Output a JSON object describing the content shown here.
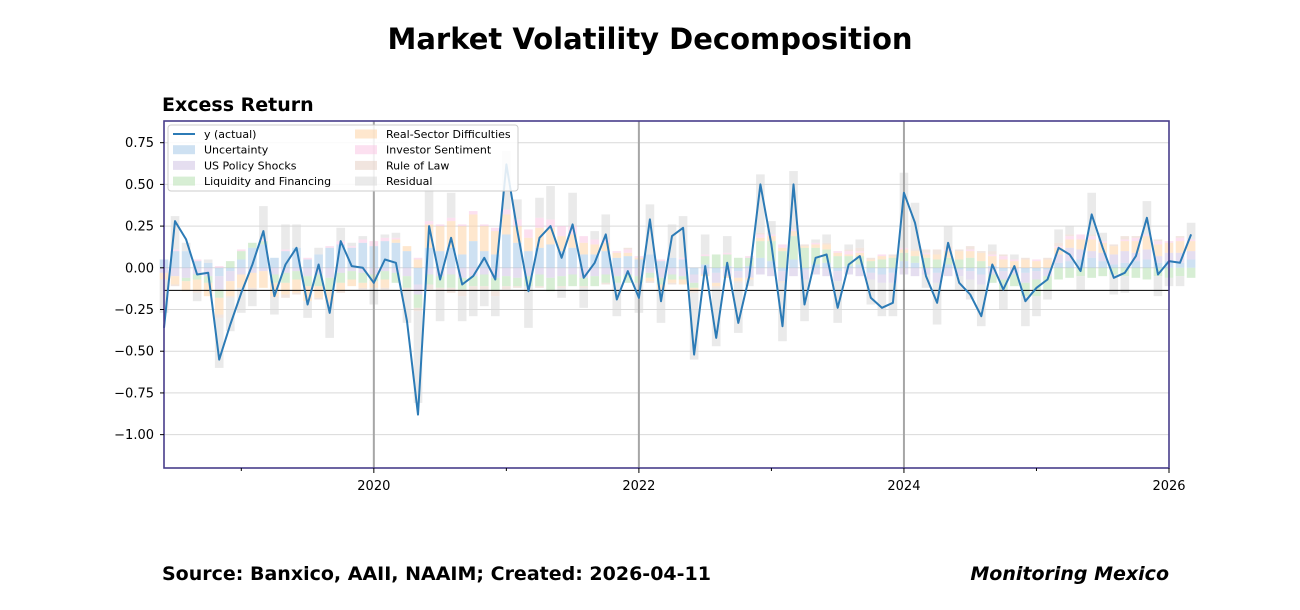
{
  "chart_data": {
    "type": "bar",
    "title": "Market Volatility Decomposition",
    "subtitle": "Excess Return",
    "ylim": [
      -1.2,
      0.88
    ],
    "xlim": [
      "2018-06",
      "2026-01"
    ],
    "y_ticks": [
      "0.75",
      "0.50",
      "0.25",
      "0.00",
      "−0.25",
      "−0.50",
      "−0.75",
      "−1.00"
    ],
    "y_tick_values": [
      0.75,
      0.5,
      0.25,
      0.0,
      -0.25,
      -0.5,
      -0.75,
      -1.0
    ],
    "x_ticks": [
      "2020",
      "2022",
      "2024",
      "2026"
    ],
    "x_tick_dates": [
      "2020-01",
      "2022-01",
      "2024-01",
      "2026-01"
    ],
    "vertical_lines": [
      "2020-01",
      "2022-01",
      "2024-01"
    ],
    "baseline": -0.135,
    "legend_position": "top-left",
    "line_series": {
      "name": "y (actual)",
      "color": "#2c7bb6",
      "values": [
        -0.36,
        0.28,
        0.17,
        -0.04,
        -0.03,
        -0.55,
        -0.34,
        -0.15,
        0.02,
        0.22,
        -0.17,
        0.02,
        0.12,
        -0.22,
        0.02,
        -0.27,
        0.16,
        0.01,
        0.0,
        -0.09,
        0.05,
        0.03,
        -0.32,
        -0.88,
        0.25,
        -0.07,
        0.18,
        -0.1,
        -0.05,
        0.06,
        -0.07,
        0.62,
        0.22,
        -0.14,
        0.18,
        0.25,
        0.06,
        0.26,
        -0.06,
        0.03,
        0.2,
        -0.19,
        -0.02,
        -0.18,
        0.29,
        -0.2,
        0.19,
        0.24,
        -0.52,
        0.01,
        -0.42,
        0.03,
        -0.33,
        -0.05,
        0.5,
        0.14,
        -0.35,
        0.5,
        -0.22,
        0.06,
        0.08,
        -0.24,
        0.02,
        0.07,
        -0.18,
        -0.24,
        -0.21,
        0.45,
        0.27,
        -0.05,
        -0.21,
        0.15,
        -0.09,
        -0.16,
        -0.29,
        0.02,
        -0.13,
        0.01,
        -0.2,
        -0.12,
        -0.07,
        0.12,
        0.08,
        -0.02,
        0.32,
        0.12,
        -0.06,
        -0.03,
        0.07,
        0.3,
        -0.04,
        0.04,
        0.03,
        0.2
      ]
    },
    "series": [
      {
        "name": "Uncertainty",
        "color": "#a6c8e8",
        "values": [
          0.05,
          0.1,
          0.1,
          0.04,
          0.03,
          -0.05,
          -0.02,
          0.05,
          0.12,
          0.14,
          0.06,
          0.1,
          0.12,
          0.05,
          0.08,
          0.12,
          0.14,
          0.12,
          0.15,
          0.13,
          0.16,
          0.15,
          0.1,
          -0.1,
          0.12,
          0.1,
          0.12,
          0.08,
          0.16,
          0.1,
          0.08,
          0.2,
          0.15,
          0.1,
          0.12,
          0.14,
          0.1,
          0.12,
          0.08,
          0.08,
          0.1,
          0.06,
          0.07,
          0.05,
          0.08,
          0.04,
          0.06,
          0.05,
          -0.04,
          0.02,
          -0.03,
          0.01,
          -0.02,
          0.01,
          0.06,
          0.04,
          -0.02,
          0.05,
          -0.01,
          0.02,
          0.03,
          -0.02,
          0.01,
          0.02,
          -0.03,
          -0.04,
          -0.03,
          0.04,
          0.03,
          0.0,
          -0.03,
          0.02,
          -0.01,
          -0.02,
          -0.04,
          0.01,
          -0.02,
          0.0,
          -0.03,
          -0.02,
          -0.01,
          0.03,
          0.04,
          0.05,
          0.06,
          0.04,
          0.02,
          0.03,
          0.04,
          0.05,
          0.03,
          0.04,
          0.03,
          0.05
        ]
      },
      {
        "name": "US Policy Shocks",
        "color": "#cfc3e3",
        "values": [
          -0.03,
          -0.05,
          -0.06,
          -0.04,
          -0.05,
          -0.08,
          -0.06,
          -0.04,
          -0.03,
          -0.02,
          -0.04,
          -0.03,
          -0.02,
          -0.05,
          -0.04,
          -0.06,
          -0.03,
          -0.02,
          -0.03,
          -0.04,
          -0.02,
          -0.03,
          -0.05,
          -0.06,
          -0.04,
          -0.05,
          -0.04,
          -0.06,
          -0.05,
          -0.04,
          -0.06,
          -0.05,
          -0.06,
          -0.05,
          -0.04,
          -0.06,
          -0.05,
          -0.04,
          -0.06,
          -0.05,
          -0.04,
          -0.05,
          -0.04,
          -0.05,
          -0.03,
          -0.06,
          -0.04,
          -0.05,
          -0.05,
          -0.04,
          -0.06,
          -0.05,
          -0.04,
          -0.06,
          -0.04,
          -0.05,
          -0.06,
          -0.05,
          -0.06,
          -0.04,
          -0.05,
          -0.06,
          -0.04,
          -0.05,
          -0.04,
          -0.05,
          -0.06,
          -0.04,
          -0.05,
          -0.04,
          -0.06,
          -0.05,
          -0.04,
          -0.05,
          -0.06,
          -0.04,
          -0.05,
          -0.04,
          -0.06,
          -0.05,
          -0.04,
          0.05,
          0.08,
          0.06,
          0.04,
          0.05,
          0.06,
          0.07,
          0.05,
          0.06,
          0.04,
          0.05,
          0.06,
          0.05
        ]
      },
      {
        "name": "Liquidity and Financing",
        "color": "#b6e0b1",
        "values": [
          0.0,
          0.0,
          -0.02,
          -0.03,
          -0.04,
          -0.05,
          0.04,
          0.05,
          0.03,
          0.02,
          -0.05,
          -0.06,
          -0.05,
          -0.06,
          -0.07,
          -0.08,
          -0.06,
          -0.05,
          -0.06,
          -0.04,
          -0.05,
          -0.06,
          -0.07,
          -0.08,
          -0.06,
          -0.07,
          -0.08,
          -0.07,
          -0.06,
          -0.07,
          -0.08,
          -0.06,
          -0.05,
          -0.06,
          -0.07,
          -0.08,
          -0.06,
          -0.07,
          -0.05,
          -0.06,
          -0.05,
          -0.04,
          -0.05,
          -0.04,
          -0.03,
          -0.04,
          -0.03,
          -0.02,
          -0.03,
          0.05,
          0.08,
          0.07,
          0.06,
          0.05,
          0.1,
          0.12,
          0.1,
          0.14,
          0.12,
          0.1,
          0.08,
          0.07,
          0.06,
          0.05,
          0.04,
          0.05,
          0.06,
          0.05,
          0.04,
          0.06,
          0.05,
          0.04,
          0.05,
          0.06,
          0.04,
          -0.05,
          -0.06,
          -0.07,
          -0.08,
          -0.1,
          -0.08,
          -0.07,
          -0.06,
          -0.05,
          -0.06,
          -0.05,
          -0.04,
          -0.05,
          -0.06,
          -0.07,
          -0.05,
          -0.06,
          -0.05,
          -0.06
        ]
      },
      {
        "name": "Real-Sector Difficulties",
        "color": "#fdd3a6",
        "values": [
          -0.04,
          -0.05,
          -0.06,
          -0.07,
          -0.08,
          -0.1,
          -0.09,
          -0.08,
          -0.09,
          -0.1,
          -0.08,
          -0.07,
          -0.08,
          -0.09,
          -0.07,
          -0.06,
          -0.05,
          -0.04,
          -0.03,
          -0.04,
          -0.05,
          0.02,
          0.03,
          0.05,
          0.14,
          0.15,
          0.16,
          0.17,
          0.16,
          0.15,
          0.14,
          0.12,
          0.1,
          0.08,
          0.12,
          0.1,
          0.09,
          0.08,
          0.07,
          0.06,
          0.05,
          0.03,
          0.02,
          0.01,
          -0.02,
          -0.03,
          -0.02,
          -0.03,
          -0.02,
          -0.01,
          -0.02,
          -0.01,
          -0.02,
          -0.01,
          0.02,
          0.03,
          0.02,
          0.03,
          0.01,
          0.02,
          0.03,
          0.02,
          0.01,
          0.02,
          0.01,
          0.02,
          0.01,
          0.02,
          0.03,
          0.02,
          0.03,
          0.04,
          0.05,
          0.04,
          0.05,
          0.06,
          0.05,
          0.04,
          0.05,
          0.04,
          0.05,
          0.04,
          0.05,
          0.06,
          0.07,
          0.06,
          0.05,
          0.06,
          0.07,
          0.08,
          0.07,
          0.06,
          0.07,
          0.06
        ]
      },
      {
        "name": "Investor Sentiment",
        "color": "#f9c6e4",
        "values": [
          0.0,
          0.01,
          0.0,
          0.01,
          0.0,
          0.01,
          0.0,
          0.01,
          0.0,
          0.01,
          0.0,
          0.01,
          0.0,
          0.01,
          0.0,
          0.01,
          0.02,
          0.01,
          0.02,
          0.03,
          0.02,
          0.01,
          0.0,
          0.01,
          0.02,
          0.01,
          0.02,
          0.01,
          0.02,
          0.01,
          0.02,
          0.03,
          0.04,
          0.05,
          0.06,
          0.05,
          0.06,
          0.05,
          0.04,
          0.03,
          0.02,
          0.01,
          0.02,
          0.01,
          0.0,
          0.01,
          0.0,
          0.01,
          0.0,
          0.01,
          0.0,
          0.01,
          0.0,
          0.01,
          0.02,
          0.01,
          0.02,
          0.01,
          0.0,
          0.01,
          0.0,
          0.01,
          0.02,
          0.01,
          0.0,
          0.01,
          0.0,
          0.01,
          0.0,
          0.01,
          0.0,
          0.01,
          0.0,
          0.01,
          0.0,
          0.01,
          0.02,
          0.01,
          0.0,
          0.01,
          0.0,
          0.01,
          0.02,
          0.03,
          0.02,
          0.01,
          0.0,
          0.01,
          0.02,
          0.01,
          0.02,
          0.01,
          0.02,
          0.01
        ]
      },
      {
        "name": "Rule of Law",
        "color": "#e6cfc4",
        "values": [
          0.0,
          -0.01,
          0.0,
          -0.01,
          0.0,
          -0.02,
          -0.01,
          0.0,
          -0.01,
          0.0,
          -0.01,
          -0.02,
          -0.01,
          0.0,
          -0.01,
          -0.02,
          -0.01,
          0.0,
          -0.01,
          0.0,
          -0.01,
          0.0,
          -0.01,
          -0.02,
          -0.03,
          -0.02,
          -0.03,
          -0.04,
          -0.03,
          -0.02,
          -0.03,
          -0.02,
          -0.01,
          0.0,
          -0.01,
          0.0,
          -0.01,
          0.0,
          -0.01,
          0.0,
          -0.01,
          0.0,
          0.01,
          0.0,
          -0.01,
          0.0,
          -0.01,
          0.0,
          -0.01,
          0.0,
          -0.01,
          0.0,
          -0.01,
          0.0,
          0.01,
          0.0,
          -0.01,
          0.0,
          0.01,
          0.0,
          0.01,
          0.0,
          0.01,
          0.02,
          0.01,
          0.0,
          0.01,
          0.0,
          0.01,
          0.02,
          0.03,
          0.02,
          0.01,
          0.02,
          0.01,
          0.02,
          0.01,
          0.0,
          0.01,
          0.0,
          0.01,
          0.02,
          0.01,
          0.0,
          0.01,
          0.0,
          0.01,
          0.02,
          0.01,
          0.0,
          0.01,
          0.0,
          0.01,
          0.0
        ]
      },
      {
        "name": "Residual",
        "color": "#d9d9d9",
        "values": [
          -0.2,
          0.2,
          0.05,
          -0.05,
          0.02,
          -0.3,
          -0.2,
          -0.15,
          -0.1,
          0.2,
          -0.1,
          0.15,
          0.14,
          -0.1,
          0.04,
          -0.2,
          0.08,
          0.02,
          0.02,
          -0.1,
          0.02,
          0.03,
          -0.2,
          -0.55,
          0.22,
          -0.18,
          0.15,
          -0.15,
          -0.15,
          -0.1,
          -0.12,
          0.35,
          0.12,
          -0.25,
          0.12,
          0.2,
          -0.06,
          0.2,
          -0.12,
          0.05,
          0.15,
          -0.2,
          0.0,
          -0.18,
          0.3,
          -0.2,
          0.2,
          0.25,
          -0.4,
          0.12,
          -0.35,
          0.1,
          -0.3,
          -0.04,
          0.35,
          0.08,
          -0.35,
          0.35,
          -0.25,
          0.02,
          0.05,
          -0.25,
          0.03,
          0.05,
          -0.15,
          -0.2,
          -0.2,
          0.45,
          0.28,
          -0.08,
          -0.25,
          0.12,
          -0.08,
          -0.12,
          -0.25,
          0.04,
          -0.12,
          0.03,
          -0.18,
          -0.12,
          -0.06,
          0.08,
          0.05,
          -0.08,
          0.25,
          0.05,
          -0.12,
          -0.1,
          0.0,
          0.2,
          -0.12,
          -0.05,
          -0.06,
          0.1
        ]
      }
    ]
  },
  "footer": {
    "source": "Source: Banxico, AAII, NAAIM; Created: 2026-04-11",
    "brand": "Monitoring Mexico"
  }
}
